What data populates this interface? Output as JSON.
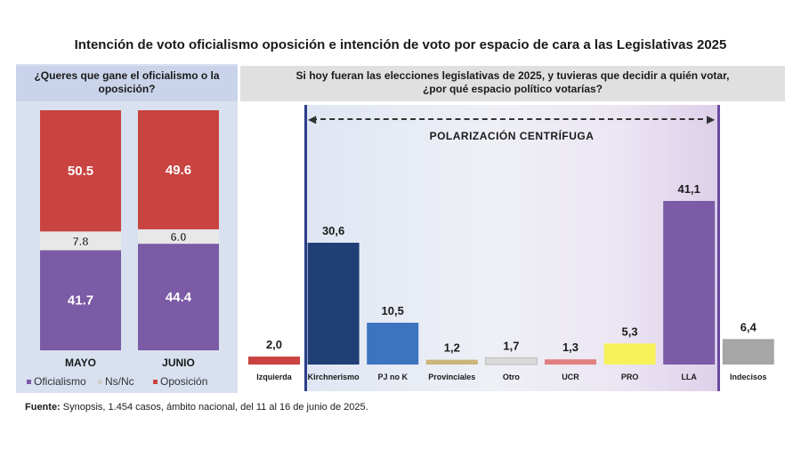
{
  "title": "Intención de voto oficialismo oposición e intención de voto por espacio de cara a las Legislativas 2025",
  "left_question": "¿Queres que gane el oficialismo o la oposición?",
  "right_question_line1": "Si hoy fueran las elecciones legislativas de 2025, y tuvieras que decidir a quién votar,",
  "right_question_line2": "¿por qué espacio político votarías?",
  "polarization_label": "POLARIZACIÓN CENTRÍFUGA",
  "source_label": "Fuente:",
  "source_text": " Synopsis, 1.454 casos, ámbito nacional, del 11 al 16 de junio de 2025.",
  "colors": {
    "oficialismo": "#7b5aa6",
    "nsnc": "#e8e8e8",
    "oposicion": "#c94340"
  },
  "chart_data": [
    {
      "type": "bar",
      "stacked": true,
      "categories": [
        "MAYO",
        "JUNIO"
      ],
      "series": [
        {
          "name": "Oficialismo",
          "values": [
            41.7,
            44.4
          ],
          "labels": [
            "41.7",
            "44.4"
          ],
          "color": "#7b5aa6"
        },
        {
          "name": "Ns/Nc",
          "values": [
            7.8,
            6.0
          ],
          "labels": [
            "7.8",
            "6.0"
          ],
          "color": "#e8e8e8"
        },
        {
          "name": "Oposición",
          "values": [
            50.5,
            49.6
          ],
          "labels": [
            "50.5",
            "49.6"
          ],
          "color": "#c94340"
        }
      ],
      "legend": [
        "Oficialismo",
        "Ns/Nc",
        "Oposición"
      ],
      "legend_position": "bottom"
    },
    {
      "type": "bar",
      "categories": [
        "Izquierda",
        "Kirchnerismo",
        "PJ no K",
        "Provinciales",
        "Otro",
        "UCR",
        "PRO",
        "LLA",
        "Indecisos"
      ],
      "values": [
        2.0,
        30.6,
        10.5,
        1.2,
        1.7,
        1.3,
        5.3,
        41.1,
        6.4
      ],
      "labels": [
        "2,0",
        "30,6",
        "10,5",
        "1,2",
        "1,7",
        "1,3",
        "5,3",
        "41,1",
        "6,4"
      ],
      "colors": [
        "#c94340",
        "#1f3f75",
        "#3c74c0",
        "#c9b57a",
        "#d9d9d9",
        "#e08080",
        "#f7f25a",
        "#7b5aa6",
        "#a6a6a6"
      ]
    }
  ]
}
